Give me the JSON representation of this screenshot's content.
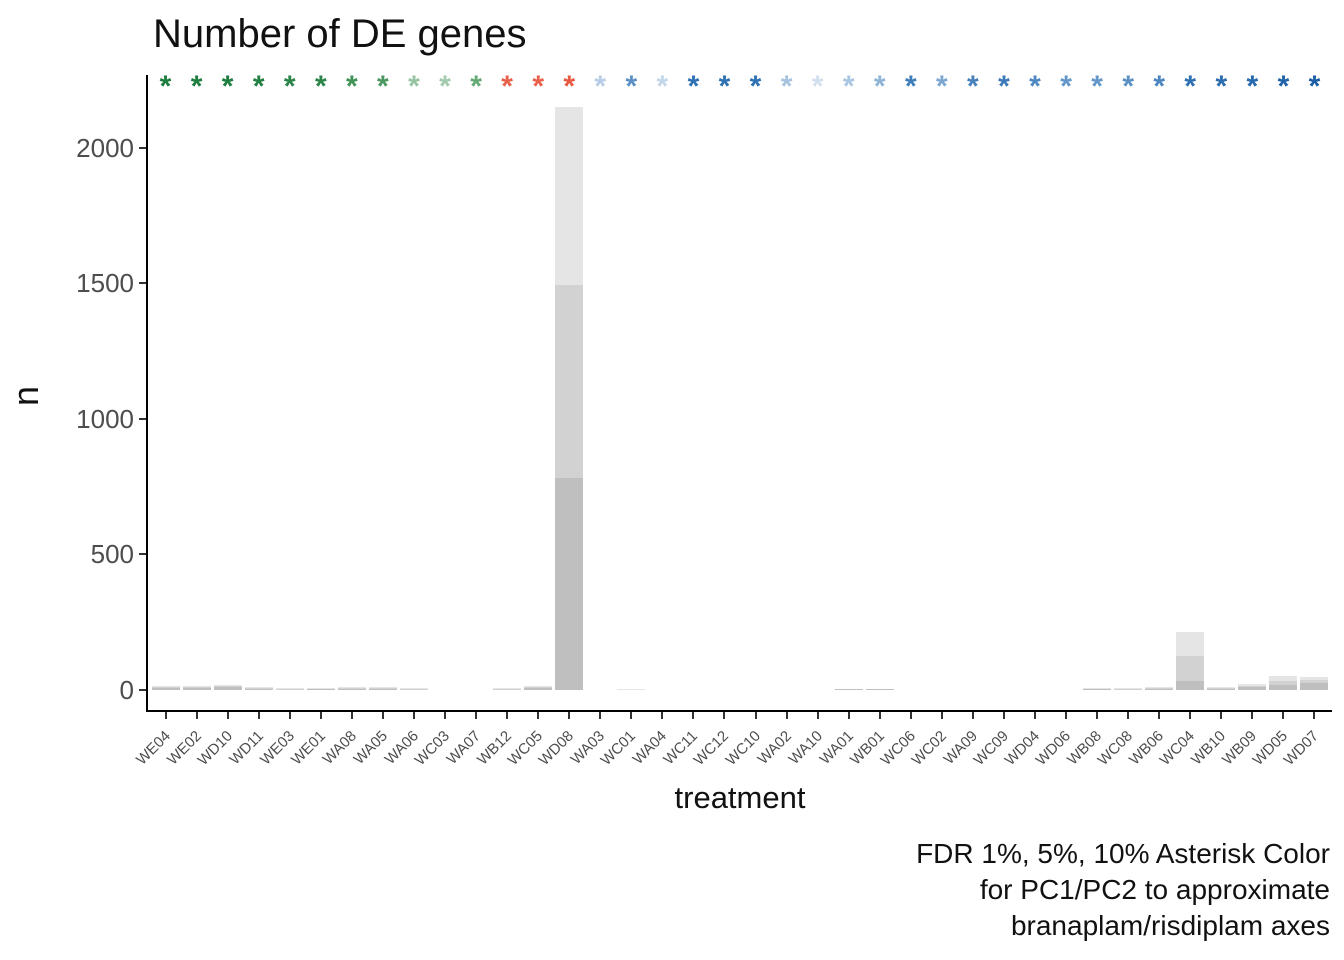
{
  "title": "Number of DE genes",
  "caption": {
    "lines": [
      "FDR 1%, 5%, 10% Asterisk Color",
      "for PC1/PC2 to approximate",
      "branaplam/risdiplam axes"
    ]
  },
  "chart_data": {
    "type": "bar",
    "stacked": true,
    "title": "Number of DE genes",
    "x_axis_label": "treatment",
    "y_axis_label": "n",
    "y_ticks": [
      0,
      500,
      1000,
      1500,
      2000
    ],
    "ylim": [
      0,
      2270
    ],
    "grid": false,
    "legend_position": "none",
    "segment_colors": {
      "fdr_1pct": "#bfbfbf",
      "fdr_5pct": "#d2d2d2",
      "fdr_10pct": "#e5e5e5"
    },
    "series_definition": "cumulative number of DE genes at FDR 1%, 5%, 10%; stacked bars, darkest = FDR 1%; colored asterisk above each treatment marks significance, color maps PC1/PC2 position",
    "treatments": [
      {
        "label": "WE04",
        "fdr_1pct": 8,
        "fdr_5pct": 12,
        "fdr_10pct": 15,
        "asterisk_color": "#1d7d3f"
      },
      {
        "label": "WE02",
        "fdr_1pct": 7,
        "fdr_5pct": 10,
        "fdr_10pct": 13,
        "asterisk_color": "#1d7d3f"
      },
      {
        "label": "WD10",
        "fdr_1pct": 10,
        "fdr_5pct": 14,
        "fdr_10pct": 18,
        "asterisk_color": "#1d7d3f"
      },
      {
        "label": "WD11",
        "fdr_1pct": 6,
        "fdr_5pct": 9,
        "fdr_10pct": 12,
        "asterisk_color": "#227f42"
      },
      {
        "label": "WE03",
        "fdr_1pct": 2,
        "fdr_5pct": 4,
        "fdr_10pct": 7,
        "asterisk_color": "#2a8447"
      },
      {
        "label": "WE01",
        "fdr_1pct": 3,
        "fdr_5pct": 6,
        "fdr_10pct": 9,
        "asterisk_color": "#2a8447"
      },
      {
        "label": "WA08",
        "fdr_1pct": 6,
        "fdr_5pct": 9,
        "fdr_10pct": 12,
        "asterisk_color": "#3f9155"
      },
      {
        "label": "WA05",
        "fdr_1pct": 4,
        "fdr_5pct": 7,
        "fdr_10pct": 10,
        "asterisk_color": "#4a975f"
      },
      {
        "label": "WA06",
        "fdr_1pct": 2,
        "fdr_5pct": 4,
        "fdr_10pct": 6,
        "asterisk_color": "#96c3a1"
      },
      {
        "label": "WC03",
        "fdr_1pct": 0,
        "fdr_5pct": 1,
        "fdr_10pct": 2,
        "asterisk_color": "#a2caac"
      },
      {
        "label": "WA07",
        "fdr_1pct": 0,
        "fdr_5pct": 1,
        "fdr_10pct": 2,
        "asterisk_color": "#63a974"
      },
      {
        "label": "WB12",
        "fdr_1pct": 2,
        "fdr_5pct": 4,
        "fdr_10pct": 6,
        "asterisk_color": "#e8604a"
      },
      {
        "label": "WC05",
        "fdr_1pct": 7,
        "fdr_5pct": 11,
        "fdr_10pct": 15,
        "asterisk_color": "#e8604a"
      },
      {
        "label": "WD08",
        "fdr_1pct": 782,
        "fdr_5pct": 1494,
        "fdr_10pct": 2150,
        "asterisk_color": "#e8573f"
      },
      {
        "label": "WA03",
        "fdr_1pct": 0,
        "fdr_5pct": 0,
        "fdr_10pct": 1,
        "asterisk_color": "#b5cde6"
      },
      {
        "label": "WC01",
        "fdr_1pct": 1,
        "fdr_5pct": 3,
        "fdr_10pct": 5,
        "asterisk_color": "#5b90c5"
      },
      {
        "label": "WA04",
        "fdr_1pct": 0,
        "fdr_5pct": 0,
        "fdr_10pct": 1,
        "asterisk_color": "#c3d6ea"
      },
      {
        "label": "WC11",
        "fdr_1pct": 0,
        "fdr_5pct": 0,
        "fdr_10pct": 0,
        "asterisk_color": "#2e71b3"
      },
      {
        "label": "WC12",
        "fdr_1pct": 0,
        "fdr_5pct": 0,
        "fdr_10pct": 0,
        "asterisk_color": "#2e71b3"
      },
      {
        "label": "WC10",
        "fdr_1pct": 0,
        "fdr_5pct": 0,
        "fdr_10pct": 1,
        "asterisk_color": "#2e71b3"
      },
      {
        "label": "WA02",
        "fdr_1pct": 0,
        "fdr_5pct": 0,
        "fdr_10pct": 0,
        "asterisk_color": "#a5c3e0"
      },
      {
        "label": "WA10",
        "fdr_1pct": 0,
        "fdr_5pct": 0,
        "fdr_10pct": 0,
        "asterisk_color": "#d3dfee"
      },
      {
        "label": "WA01",
        "fdr_1pct": 2,
        "fdr_5pct": 3,
        "fdr_10pct": 4,
        "asterisk_color": "#a9c6e2"
      },
      {
        "label": "WB01",
        "fdr_1pct": 2,
        "fdr_5pct": 3,
        "fdr_10pct": 4,
        "asterisk_color": "#8fb4d8"
      },
      {
        "label": "WC06",
        "fdr_1pct": 0,
        "fdr_5pct": 0,
        "fdr_10pct": 0,
        "asterisk_color": "#3f7dba"
      },
      {
        "label": "WC02",
        "fdr_1pct": 0,
        "fdr_5pct": 0,
        "fdr_10pct": 0,
        "asterisk_color": "#7ca7d2"
      },
      {
        "label": "WA09",
        "fdr_1pct": 0,
        "fdr_5pct": 0,
        "fdr_10pct": 1,
        "asterisk_color": "#4782bd"
      },
      {
        "label": "WC09",
        "fdr_1pct": 0,
        "fdr_5pct": 0,
        "fdr_10pct": 1,
        "asterisk_color": "#3b79b8"
      },
      {
        "label": "WD04",
        "fdr_1pct": 0,
        "fdr_5pct": 0,
        "fdr_10pct": 1,
        "asterisk_color": "#4e87c1"
      },
      {
        "label": "WD06",
        "fdr_1pct": 1,
        "fdr_5pct": 2,
        "fdr_10pct": 3,
        "asterisk_color": "#6396c9"
      },
      {
        "label": "WB08",
        "fdr_1pct": 4,
        "fdr_5pct": 6,
        "fdr_10pct": 8,
        "asterisk_color": "#6396c9"
      },
      {
        "label": "WC08",
        "fdr_1pct": 3,
        "fdr_5pct": 5,
        "fdr_10pct": 7,
        "asterisk_color": "#5b90c5"
      },
      {
        "label": "WB06",
        "fdr_1pct": 5,
        "fdr_5pct": 8,
        "fdr_10pct": 11,
        "asterisk_color": "#4b85c0"
      },
      {
        "label": "WC04",
        "fdr_1pct": 33,
        "fdr_5pct": 125,
        "fdr_10pct": 214,
        "asterisk_color": "#2f70b2"
      },
      {
        "label": "WB10",
        "fdr_1pct": 5,
        "fdr_5pct": 8,
        "fdr_10pct": 11,
        "asterisk_color": "#2b6cae"
      },
      {
        "label": "WB09",
        "fdr_1pct": 11,
        "fdr_5pct": 16,
        "fdr_10pct": 22,
        "asterisk_color": "#2568ab"
      },
      {
        "label": "WD05",
        "fdr_1pct": 18,
        "fdr_5pct": 33,
        "fdr_10pct": 52,
        "asterisk_color": "#1f62a8"
      },
      {
        "label": "WD07",
        "fdr_1pct": 26,
        "fdr_5pct": 37,
        "fdr_10pct": 48,
        "asterisk_color": "#1a5da4"
      }
    ]
  }
}
